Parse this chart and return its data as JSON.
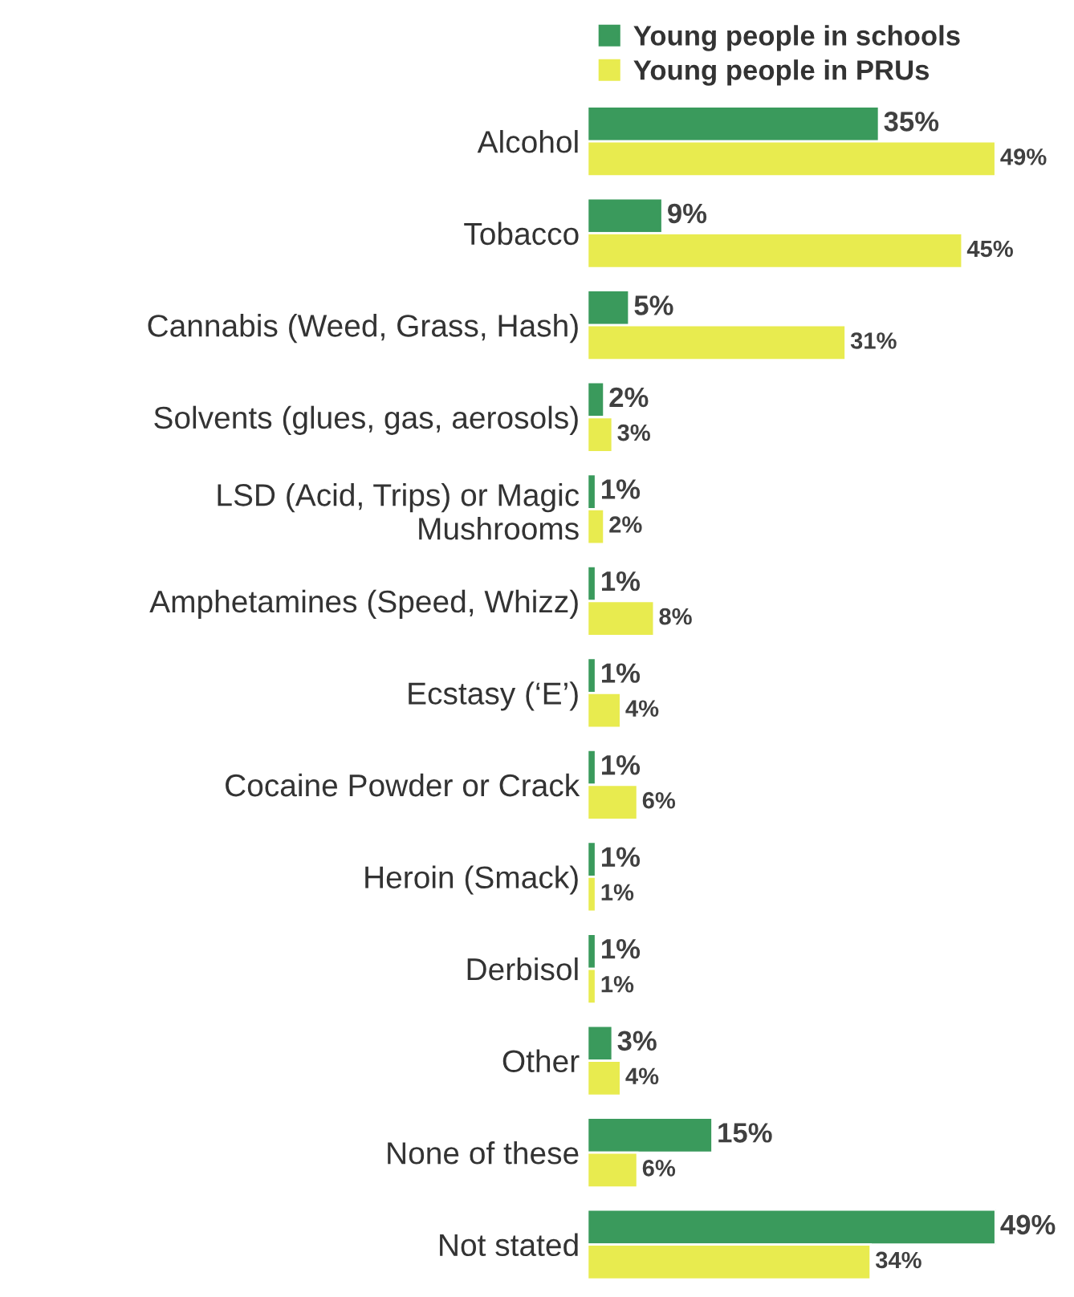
{
  "chart_data": {
    "type": "bar",
    "orientation": "horizontal",
    "legend": "top",
    "grid": false,
    "tick_labels": "y",
    "categories": [
      "Alcohol",
      "Tobacco",
      "Cannabis (Weed, Grass, Hash)",
      "Solvents (glues, gas, aerosols)",
      "LSD (Acid, Trips) or Magic\nMushrooms",
      "Amphetamines (Speed, Whizz)",
      "Ecstasy (‘E’)",
      "Cocaine Powder or Crack",
      "Heroin (Smack)",
      "Derbisol",
      "Other",
      "None of these",
      "Not stated"
    ],
    "series": [
      {
        "name": "Young people in schools",
        "color": "#3a9a5c",
        "values": [
          35,
          9,
          5,
          2,
          1,
          1,
          1,
          1,
          1,
          1,
          3,
          15,
          49
        ],
        "value_labels": [
          "35%",
          "9%",
          "5%",
          "2%",
          "1%",
          "1%",
          "1%",
          "1%",
          "1%",
          "1%",
          "3%",
          "15%",
          "49%"
        ]
      },
      {
        "name": "Young people in PRUs",
        "color": "#e8eb4f",
        "values": [
          49,
          45,
          31,
          3,
          2,
          8,
          4,
          6,
          1,
          1,
          4,
          6,
          34
        ],
        "value_labels": [
          "49%",
          "45%",
          "31%",
          "3%",
          "2%",
          "8%",
          "4%",
          "6%",
          "1%",
          "1%",
          "4%",
          "6%",
          "34%"
        ]
      }
    ]
  }
}
